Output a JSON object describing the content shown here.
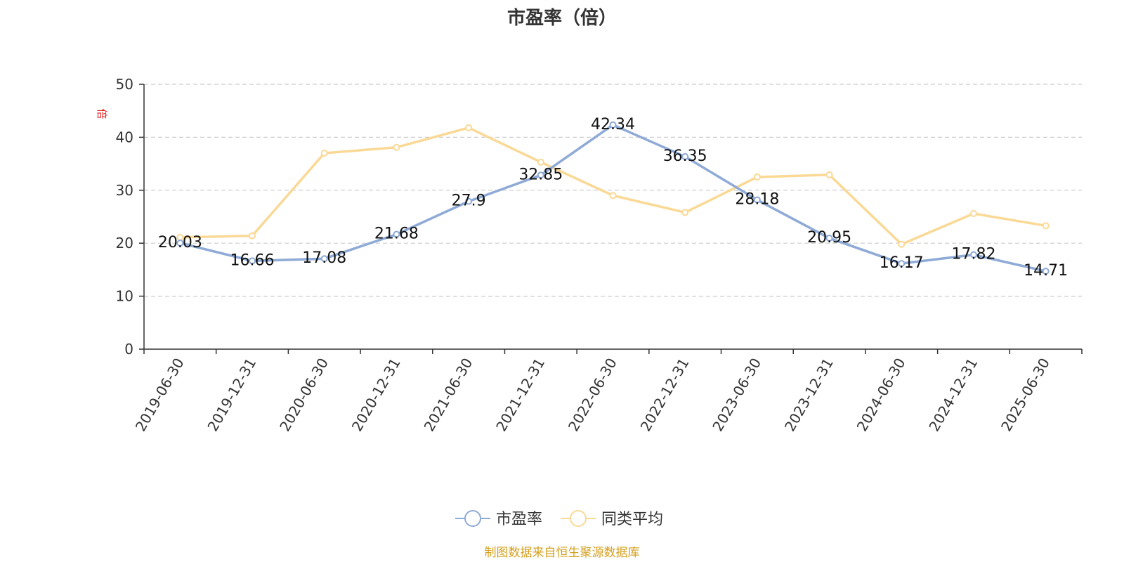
{
  "chart_data": {
    "type": "line",
    "title": "市盈率（倍）",
    "ylabel": "倍",
    "ylim": [
      0,
      50
    ],
    "yticks": [
      0,
      10,
      20,
      30,
      40,
      50
    ],
    "grid": true,
    "legend_position": "bottom-center",
    "categories": [
      "2019-06-30",
      "2019-12-31",
      "2020-06-30",
      "2020-12-31",
      "2021-06-30",
      "2021-12-31",
      "2022-06-30",
      "2022-12-31",
      "2023-06-30",
      "2023-12-31",
      "2024-06-30",
      "2024-12-31",
      "2025-06-30"
    ],
    "series": [
      {
        "name": "市盈率",
        "color": "#8eaad6",
        "values": [
          20.03,
          16.66,
          17.08,
          21.68,
          27.9,
          32.85,
          42.34,
          36.35,
          28.18,
          20.95,
          16.17,
          17.82,
          14.71
        ],
        "labels": [
          "20.03",
          "16.66",
          "17.08",
          "21.68",
          "27.9",
          "32.85",
          "42.34",
          "36.35",
          "28.18",
          "20.95",
          "16.17",
          "17.82",
          "14.71"
        ]
      },
      {
        "name": "同类平均",
        "color": "#fad996",
        "values": [
          21.1,
          21.4,
          37.0,
          38.1,
          41.8,
          35.3,
          29.0,
          25.8,
          32.5,
          32.9,
          19.8,
          25.6,
          23.3
        ]
      }
    ],
    "source": "制图数据来自恒生聚源数据库",
    "source_color": "#d4a020",
    "unit_color": "#e02020"
  }
}
